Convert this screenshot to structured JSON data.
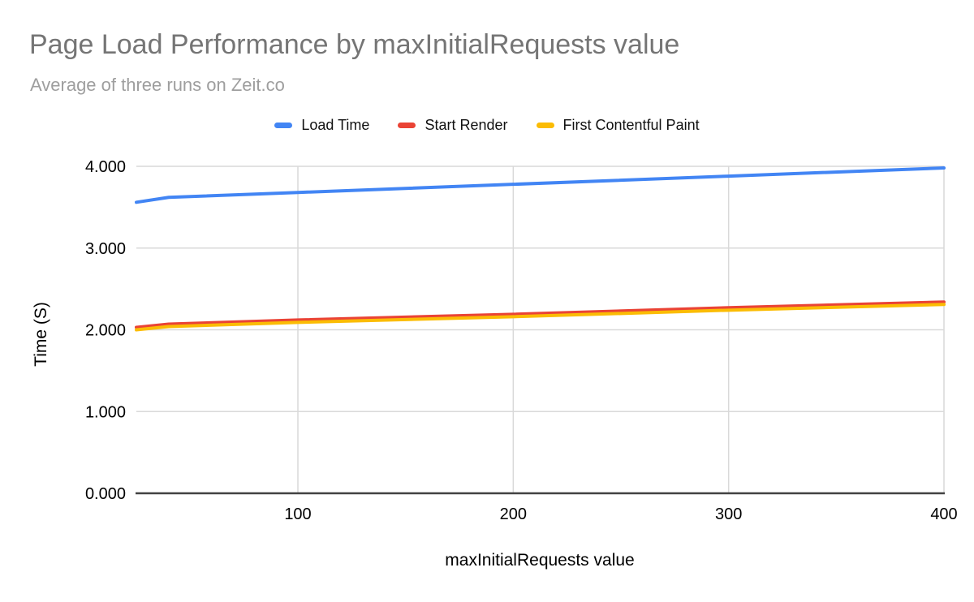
{
  "header": {
    "title": "Page Load Performance by maxInitialRequests value",
    "subtitle": "Average of three runs on Zeit.co",
    "title_color": "#757575",
    "subtitle_color": "#9e9e9e"
  },
  "chart_data": {
    "type": "line",
    "title": "Page Load Performance by maxInitialRequests value",
    "subtitle": "Average of three runs on Zeit.co",
    "xlabel": "maxInitialRequests value",
    "ylabel": "Time (S)",
    "x": [
      25,
      40,
      100,
      200,
      300,
      400
    ],
    "series": [
      {
        "name": "Load Time",
        "color": "#4285F4",
        "values": [
          3.56,
          3.62,
          3.68,
          3.78,
          3.88,
          3.98
        ]
      },
      {
        "name": "Start Render",
        "color": "#EA4335",
        "values": [
          2.03,
          2.07,
          2.12,
          2.19,
          2.27,
          2.34
        ]
      },
      {
        "name": "First Contentful Paint",
        "color": "#FBBC04",
        "values": [
          2.0,
          2.04,
          2.09,
          2.16,
          2.24,
          2.31
        ]
      }
    ],
    "xlim": [
      25,
      400
    ],
    "ylim": [
      0,
      4
    ],
    "x_ticks": [
      {
        "value": 100,
        "label": "100"
      },
      {
        "value": 200,
        "label": "200"
      },
      {
        "value": 300,
        "label": "300"
      },
      {
        "value": 400,
        "label": "400"
      }
    ],
    "y_ticks": [
      {
        "value": 0,
        "label": "0.000"
      },
      {
        "value": 1,
        "label": "1.000"
      },
      {
        "value": 2,
        "label": "2.000"
      },
      {
        "value": 3,
        "label": "3.000"
      },
      {
        "value": 4,
        "label": "4.000"
      }
    ],
    "grid": "on",
    "legend_position": "top",
    "gridline_color": "#d9d9d9",
    "axis_line_color": "#424242",
    "tick_label_color": "#000000"
  }
}
